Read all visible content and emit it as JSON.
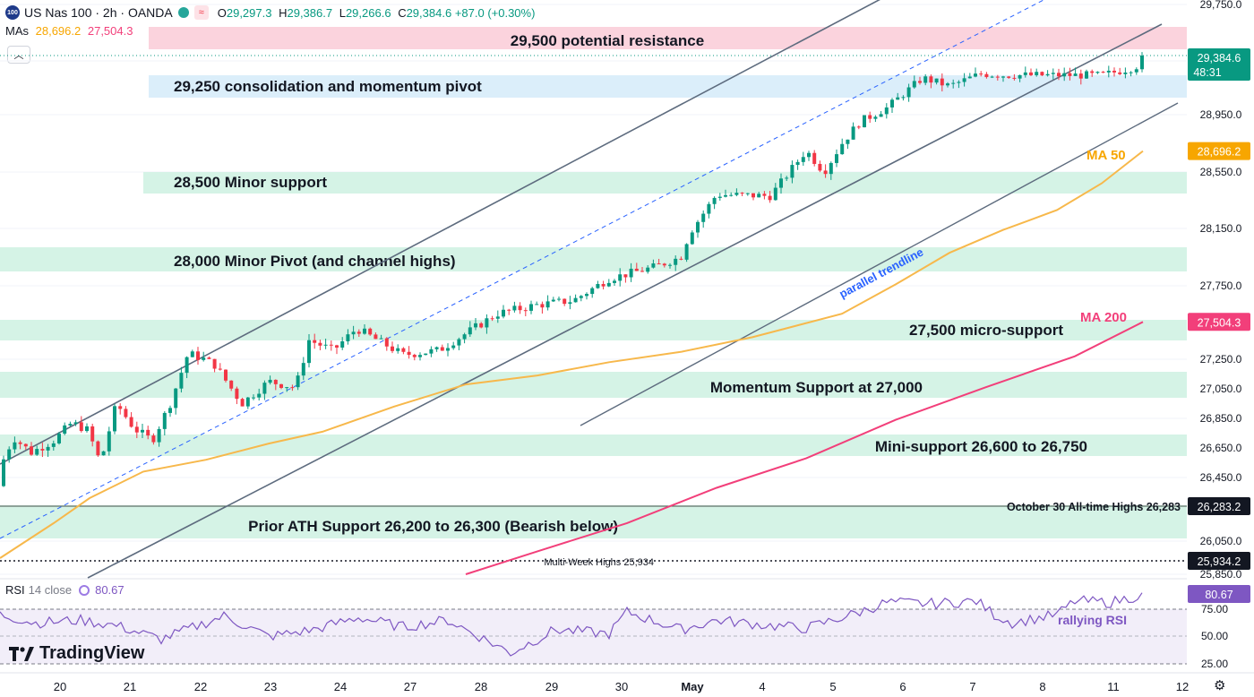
{
  "header": {
    "logo_text": "100",
    "symbol": "US Nas 100 · 2h · OANDA",
    "ohlc": [
      {
        "key": "O",
        "value": "29,297.3"
      },
      {
        "key": "H",
        "value": "29,386.7"
      },
      {
        "key": "L",
        "value": "29,266.6"
      },
      {
        "key": "C",
        "value": "29,384.6"
      }
    ],
    "change": "+87.0 (+0.30%)",
    "mas_label": "MAs",
    "ma50_value": "28,696.2",
    "ma200_value": "27,504.3"
  },
  "rsi_header": {
    "label": "RSI",
    "params": "14 close",
    "value": "80.67"
  },
  "branding": "TradingView",
  "colors": {
    "up": "#089981",
    "down": "#f23645",
    "ma50": "#f7b84b",
    "ma200": "#f23f7a",
    "rsi": "#7e57c2",
    "zone_green": "#d5f3e6",
    "zone_blue": "#dbeefa",
    "zone_red": "#fbd3dd",
    "channel": "#5d6b7e",
    "dashed_trend": "#2962ff"
  },
  "chart_data": {
    "type": "candlestick",
    "price_axis_ticks": [
      "29,750.0",
      "28,950.0",
      "28,550.0",
      "28,150.0",
      "27,750.0",
      "27,250.0",
      "27,050.0",
      "26,850.0",
      "26,650.0",
      "26,450.0",
      "26,050.0",
      "25,850.0"
    ],
    "rsi_axis_ticks": [
      "75.00",
      "50.00",
      "25.00"
    ],
    "x_ticks": [
      "20",
      "21",
      "22",
      "23",
      "24",
      "27",
      "28",
      "29",
      "30",
      "May",
      "4",
      "5",
      "6",
      "7",
      "8",
      "11",
      "12"
    ],
    "price_labels": [
      {
        "value": "29,384.6",
        "sub": "48:31",
        "color": "#089981"
      },
      {
        "value": "28,696.2",
        "color": "#f7a600"
      },
      {
        "value": "27,504.3",
        "color": "#f23f7a"
      },
      {
        "value": "26,283.2",
        "color": "#131722"
      },
      {
        "value": "25,934.2",
        "color": "#131722"
      },
      {
        "value": "80.67",
        "color": "#7e57c2"
      }
    ],
    "zones": [
      {
        "label": "29,500 potential resistance",
        "color": "red"
      },
      {
        "label": "29,250 consolidation and momentum pivot",
        "color": "blue"
      },
      {
        "label": "28,500 Minor support",
        "color": "green"
      },
      {
        "label": "28,000 Minor Pivot (and channel highs)",
        "color": "green"
      },
      {
        "label": "27,500 micro-support",
        "color": "green"
      },
      {
        "label": "Momentum Support at 27,000",
        "color": "green"
      },
      {
        "label": "Mini-support 26,600 to 26,750",
        "color": "green"
      },
      {
        "label": "Prior ATH Support 26,200 to 26,300 (Bearish below)",
        "color": "green"
      }
    ],
    "levels": [
      {
        "label": "October 30 All-time Highs 26,283",
        "value": 26283.2
      },
      {
        "label": "Multi-Week Highs 25,934",
        "value": 25934.2
      }
    ],
    "annotations": [
      "MA 50",
      "MA 200",
      "parallel trendline",
      "rallying RSI"
    ],
    "last_close": 29384.6,
    "ma50_last": 28696.2,
    "ma200_last": 27504.3,
    "rsi_last": 80.67
  }
}
